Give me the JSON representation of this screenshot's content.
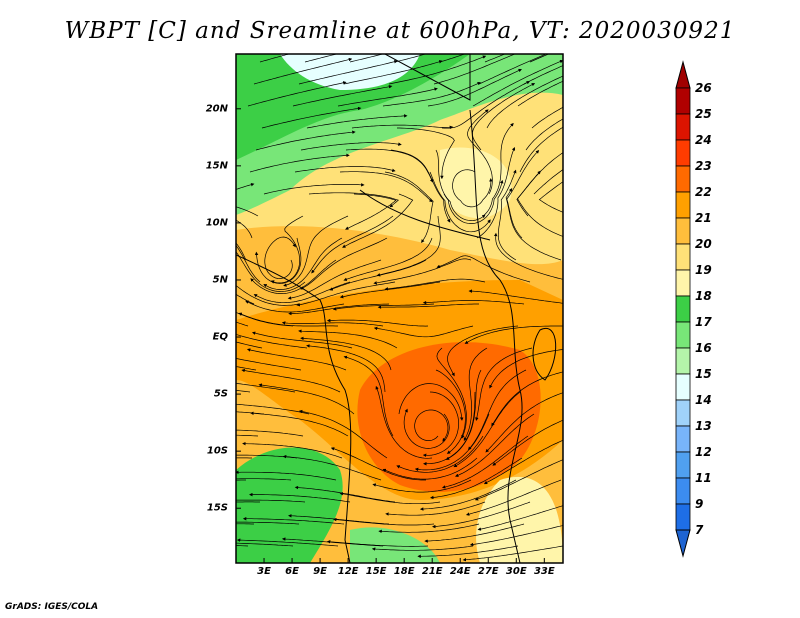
{
  "title": "WBPT [C] and Sreamline at 600hPa, VT: 2020030921",
  "footer": "GrADS: IGES/COLA",
  "map": {
    "lat_ticks": [
      {
        "label": "20N",
        "lat": 20
      },
      {
        "label": "15N",
        "lat": 15
      },
      {
        "label": "10N",
        "lat": 10
      },
      {
        "label": "5N",
        "lat": 5
      },
      {
        "label": "EQ",
        "lat": 0
      },
      {
        "label": "5S",
        "lat": -5
      },
      {
        "label": "10S",
        "lat": -10
      },
      {
        "label": "15S",
        "lat": -15
      }
    ],
    "lon_ticks": [
      {
        "label": "3E",
        "lon": 3
      },
      {
        "label": "6E",
        "lon": 6
      },
      {
        "label": "9E",
        "lon": 9
      },
      {
        "label": "12E",
        "lon": 12
      },
      {
        "label": "15E",
        "lon": 15
      },
      {
        "label": "18E",
        "lon": 18
      },
      {
        "label": "21E",
        "lon": 21
      },
      {
        "label": "24E",
        "lon": 24
      },
      {
        "label": "27E",
        "lon": 27
      },
      {
        "label": "30E",
        "lon": 30
      },
      {
        "label": "33E",
        "lon": 33
      }
    ],
    "lat_range": [
      -19.8,
      24.8
    ],
    "lon_range": [
      0,
      35
    ]
  },
  "colorbar": {
    "labels": [
      "26",
      "25",
      "24",
      "23",
      "22",
      "21",
      "20",
      "19",
      "18",
      "17",
      "16",
      "15",
      "14",
      "13",
      "12",
      "11",
      "9",
      "7"
    ],
    "colors": [
      "#b00000",
      "#dc1400",
      "#ff3c00",
      "#ff6a00",
      "#ffa000",
      "#ffbe3c",
      "#ffe178",
      "#fff5aa",
      "#3ccf46",
      "#78e678",
      "#b4f5aa",
      "#e6ffff",
      "#a0d2fa",
      "#78b4fa",
      "#50a0f0",
      "#3c8cf0",
      "#1e6ee6"
    ],
    "over_color": "#a00000",
    "under_color": "#1e64d2"
  }
}
